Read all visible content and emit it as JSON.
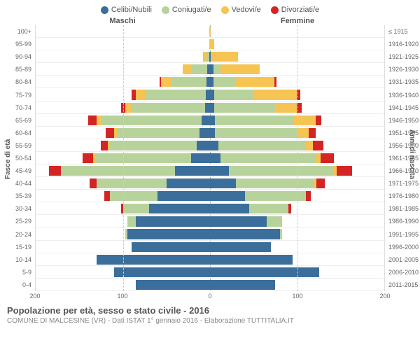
{
  "legend": [
    {
      "label": "Celibi/Nubili",
      "color": "#3b6e9a"
    },
    {
      "label": "Coniugati/e",
      "color": "#b8d29c"
    },
    {
      "label": "Vedovi/e",
      "color": "#f6c452"
    },
    {
      "label": "Divorziati/e",
      "color": "#d42424"
    }
  ],
  "headers": {
    "male": "Maschi",
    "female": "Femmine"
  },
  "axis_labels": {
    "left": "Fasce di età",
    "right": "Anni di nascita"
  },
  "footer": {
    "title": "Popolazione per età, sesso e stato civile - 2016",
    "subtitle": "COMUNE DI MALCESINE (VR) - Dati ISTAT 1° gennaio 2016 - Elaborazione TUTTITALIA.IT"
  },
  "chart": {
    "type": "population-pyramid",
    "x_max": 200,
    "x_ticks": [
      200,
      100,
      0,
      100,
      200
    ],
    "background_color": "#ffffff",
    "grid_color": "#e0e0e0",
    "series_colors": {
      "celibi": "#3b6e9a",
      "coniugati": "#b8d29c",
      "vedovi": "#f6c452",
      "divorziati": "#d42424"
    },
    "rows": [
      {
        "age": "100+",
        "birth": "≤ 1915",
        "m": {
          "c": 0,
          "g": 0,
          "v": 1,
          "d": 0
        },
        "f": {
          "c": 0,
          "g": 0,
          "v": 1,
          "d": 0
        }
      },
      {
        "age": "95-99",
        "birth": "1916-1920",
        "m": {
          "c": 0,
          "g": 0,
          "v": 1,
          "d": 0
        },
        "f": {
          "c": 0,
          "g": 0,
          "v": 5,
          "d": 0
        }
      },
      {
        "age": "90-94",
        "birth": "1921-1925",
        "m": {
          "c": 1,
          "g": 3,
          "v": 4,
          "d": 0
        },
        "f": {
          "c": 1,
          "g": 1,
          "v": 30,
          "d": 0
        }
      },
      {
        "age": "85-89",
        "birth": "1926-1930",
        "m": {
          "c": 3,
          "g": 18,
          "v": 10,
          "d": 0
        },
        "f": {
          "c": 4,
          "g": 8,
          "v": 45,
          "d": 0
        }
      },
      {
        "age": "80-84",
        "birth": "1931-1935",
        "m": {
          "c": 4,
          "g": 40,
          "v": 12,
          "d": 2
        },
        "f": {
          "c": 4,
          "g": 25,
          "v": 45,
          "d": 2
        }
      },
      {
        "age": "75-79",
        "birth": "1936-1940",
        "m": {
          "c": 5,
          "g": 70,
          "v": 10,
          "d": 5
        },
        "f": {
          "c": 5,
          "g": 45,
          "v": 50,
          "d": 4
        }
      },
      {
        "age": "70-74",
        "birth": "1941-1945",
        "m": {
          "c": 6,
          "g": 85,
          "v": 6,
          "d": 5
        },
        "f": {
          "c": 5,
          "g": 70,
          "v": 25,
          "d": 5
        }
      },
      {
        "age": "65-69",
        "birth": "1946-1950",
        "m": {
          "c": 10,
          "g": 115,
          "v": 5,
          "d": 10
        },
        "f": {
          "c": 6,
          "g": 90,
          "v": 25,
          "d": 7
        }
      },
      {
        "age": "60-64",
        "birth": "1951-1955",
        "m": {
          "c": 12,
          "g": 95,
          "v": 3,
          "d": 10
        },
        "f": {
          "c": 6,
          "g": 95,
          "v": 12,
          "d": 8
        }
      },
      {
        "age": "55-59",
        "birth": "1956-1960",
        "m": {
          "c": 15,
          "g": 100,
          "v": 2,
          "d": 8
        },
        "f": {
          "c": 10,
          "g": 100,
          "v": 8,
          "d": 12
        }
      },
      {
        "age": "50-54",
        "birth": "1961-1965",
        "m": {
          "c": 22,
          "g": 110,
          "v": 2,
          "d": 12
        },
        "f": {
          "c": 12,
          "g": 110,
          "v": 5,
          "d": 15
        }
      },
      {
        "age": "45-49",
        "birth": "1966-1970",
        "m": {
          "c": 40,
          "g": 130,
          "v": 1,
          "d": 14
        },
        "f": {
          "c": 22,
          "g": 120,
          "v": 3,
          "d": 18
        }
      },
      {
        "age": "40-44",
        "birth": "1971-1975",
        "m": {
          "c": 50,
          "g": 80,
          "v": 0,
          "d": 8
        },
        "f": {
          "c": 30,
          "g": 90,
          "v": 2,
          "d": 10
        }
      },
      {
        "age": "35-39",
        "birth": "1976-1980",
        "m": {
          "c": 60,
          "g": 55,
          "v": 0,
          "d": 6
        },
        "f": {
          "c": 40,
          "g": 70,
          "v": 0,
          "d": 6
        }
      },
      {
        "age": "30-34",
        "birth": "1981-1985",
        "m": {
          "c": 70,
          "g": 30,
          "v": 0,
          "d": 2
        },
        "f": {
          "c": 45,
          "g": 45,
          "v": 0,
          "d": 3
        }
      },
      {
        "age": "25-29",
        "birth": "1986-1990",
        "m": {
          "c": 85,
          "g": 10,
          "v": 0,
          "d": 0
        },
        "f": {
          "c": 65,
          "g": 18,
          "v": 0,
          "d": 0
        }
      },
      {
        "age": "20-24",
        "birth": "1991-1995",
        "m": {
          "c": 95,
          "g": 2,
          "v": 0,
          "d": 0
        },
        "f": {
          "c": 80,
          "g": 3,
          "v": 0,
          "d": 0
        }
      },
      {
        "age": "15-19",
        "birth": "1996-2000",
        "m": {
          "c": 90,
          "g": 0,
          "v": 0,
          "d": 0
        },
        "f": {
          "c": 70,
          "g": 0,
          "v": 0,
          "d": 0
        }
      },
      {
        "age": "10-14",
        "birth": "2001-2005",
        "m": {
          "c": 130,
          "g": 0,
          "v": 0,
          "d": 0
        },
        "f": {
          "c": 95,
          "g": 0,
          "v": 0,
          "d": 0
        }
      },
      {
        "age": "5-9",
        "birth": "2006-2010",
        "m": {
          "c": 110,
          "g": 0,
          "v": 0,
          "d": 0
        },
        "f": {
          "c": 125,
          "g": 0,
          "v": 0,
          "d": 0
        }
      },
      {
        "age": "0-4",
        "birth": "2011-2015",
        "m": {
          "c": 85,
          "g": 0,
          "v": 0,
          "d": 0
        },
        "f": {
          "c": 75,
          "g": 0,
          "v": 0,
          "d": 0
        }
      }
    ]
  }
}
